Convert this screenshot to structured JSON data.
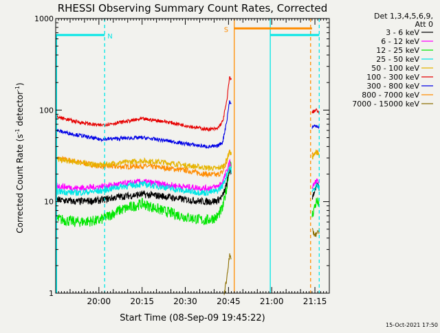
{
  "chart_data": {
    "type": "line",
    "title": "RHESSI Observing Summary Count Rates, Corrected",
    "xlabel": "Start Time (08-Sep-09 19:45:22)",
    "ylabel": "Corrected Count Rate (s⁻¹ detector⁻¹)",
    "ylabel_main": "Corrected Count Rate (s",
    "ylabel_sup1": "-1",
    "ylabel_mid": " detector",
    "ylabel_sup2": "-1",
    "ylabel_end": ")",
    "yscale": "log",
    "ylim": [
      1,
      1000
    ],
    "xlim_minutes_after_start": [
      0,
      95
    ],
    "x_ticks": [
      {
        "label": "20:00",
        "minutes": 15
      },
      {
        "label": "20:15",
        "minutes": 30
      },
      {
        "label": "20:30",
        "minutes": 45
      },
      {
        "label": "20:45",
        "minutes": 60
      },
      {
        "label": "21:00",
        "minutes": 75
      },
      {
        "label": "21:15",
        "minutes": 90
      }
    ],
    "y_ticks": [
      {
        "label": "1",
        "value": 1
      },
      {
        "label": "10",
        "value": 10
      },
      {
        "label": "100",
        "value": 100
      },
      {
        "label": "1000",
        "value": 1000
      }
    ],
    "legend_header": [
      "Det 1,3,4,5,6,9,",
      "Att 0"
    ],
    "legend_position": "right",
    "series": [
      {
        "name": "3 - 6 keV",
        "color": "#000000",
        "values": [
          [
            0,
            10.5
          ],
          [
            7,
            10
          ],
          [
            15,
            10.3
          ],
          [
            22,
            11.3
          ],
          [
            30,
            12
          ],
          [
            37,
            11.5
          ],
          [
            45,
            10.5
          ],
          [
            52,
            10
          ],
          [
            56,
            10.2
          ],
          [
            58,
            11.5
          ],
          [
            59.5,
            16
          ],
          [
            60.3,
            22
          ],
          [
            61,
            20
          ],
          [
            89,
            11
          ],
          [
            90.5,
            15
          ],
          [
            91.5,
            14
          ]
        ]
      },
      {
        "name": "6 - 12 keV",
        "color": "#ff00ff",
        "values": [
          [
            0,
            15
          ],
          [
            7,
            14
          ],
          [
            15,
            14.5
          ],
          [
            22,
            15.5
          ],
          [
            30,
            16.5
          ],
          [
            37,
            15.5
          ],
          [
            45,
            14.5
          ],
          [
            52,
            14
          ],
          [
            56,
            14.5
          ],
          [
            58,
            16.5
          ],
          [
            59.5,
            22
          ],
          [
            60.3,
            27
          ],
          [
            61,
            25
          ],
          [
            89,
            14
          ],
          [
            90.5,
            17
          ],
          [
            91.5,
            16
          ]
        ]
      },
      {
        "name": "12 - 25 keV",
        "color": "#00e600",
        "values": [
          [
            0,
            6.5
          ],
          [
            7,
            6
          ],
          [
            15,
            6.2
          ],
          [
            22,
            8
          ],
          [
            30,
            9.5
          ],
          [
            37,
            8
          ],
          [
            45,
            6.8
          ],
          [
            52,
            6.2
          ],
          [
            56,
            6.8
          ],
          [
            58,
            8.5
          ],
          [
            59.5,
            15
          ],
          [
            60.3,
            26
          ],
          [
            61,
            24
          ],
          [
            89,
            7
          ],
          [
            90.5,
            10
          ],
          [
            91.5,
            9.5
          ]
        ]
      },
      {
        "name": "25 - 50 keV",
        "color": "#00e6e6",
        "values": [
          [
            0,
            13
          ],
          [
            7,
            12.5
          ],
          [
            15,
            13
          ],
          [
            22,
            14.5
          ],
          [
            30,
            15.5
          ],
          [
            37,
            14.5
          ],
          [
            45,
            13
          ],
          [
            52,
            12.5
          ],
          [
            56,
            13
          ],
          [
            58,
            15
          ],
          [
            59.5,
            20
          ],
          [
            60.3,
            24
          ],
          [
            61,
            22
          ],
          [
            89,
            12.5
          ],
          [
            90.5,
            15
          ],
          [
            91.5,
            14.5
          ]
        ]
      },
      {
        "name": "50 - 100 keV",
        "color": "#e6b400",
        "values": [
          [
            0,
            29
          ],
          [
            7,
            27
          ],
          [
            15,
            25
          ],
          [
            22,
            26.5
          ],
          [
            30,
            28
          ],
          [
            37,
            27
          ],
          [
            45,
            25
          ],
          [
            52,
            23.5
          ],
          [
            56,
            23
          ],
          [
            58,
            24
          ],
          [
            59.5,
            29
          ],
          [
            60.3,
            35
          ],
          [
            61,
            33
          ],
          [
            89,
            30
          ],
          [
            90.5,
            35
          ],
          [
            91.5,
            33
          ]
        ]
      },
      {
        "name": "100 - 300 keV",
        "color": "#e60000",
        "values": [
          [
            0,
            85
          ],
          [
            7,
            75
          ],
          [
            15,
            68
          ],
          [
            22,
            73
          ],
          [
            30,
            80
          ],
          [
            37,
            76
          ],
          [
            45,
            68
          ],
          [
            52,
            62
          ],
          [
            56,
            62
          ],
          [
            58,
            75
          ],
          [
            59.5,
            130
          ],
          [
            60.3,
            230
          ],
          [
            61,
            210
          ],
          [
            89,
            95
          ],
          [
            90.5,
            100
          ],
          [
            91.5,
            92
          ]
        ]
      },
      {
        "name": "300 - 800 keV",
        "color": "#0000e6",
        "values": [
          [
            0,
            60
          ],
          [
            7,
            54
          ],
          [
            15,
            48
          ],
          [
            22,
            49
          ],
          [
            30,
            50
          ],
          [
            37,
            47
          ],
          [
            45,
            43
          ],
          [
            52,
            40
          ],
          [
            56,
            40
          ],
          [
            58,
            45
          ],
          [
            59.5,
            80
          ],
          [
            60.3,
            125
          ],
          [
            61,
            115
          ],
          [
            89,
            65
          ],
          [
            90.5,
            68
          ],
          [
            91.5,
            65
          ]
        ]
      },
      {
        "name": "800 - 7000 keV",
        "color": "#ff8c00",
        "values": [
          [
            0,
            30
          ],
          [
            7,
            27.5
          ],
          [
            15,
            24.5
          ],
          [
            22,
            24
          ],
          [
            30,
            24.5
          ],
          [
            37,
            23.5
          ],
          [
            45,
            22
          ],
          [
            52,
            20
          ],
          [
            56,
            19.5
          ],
          [
            58,
            21
          ],
          [
            59.5,
            28
          ],
          [
            60.3,
            36
          ],
          [
            61,
            34
          ],
          [
            89,
            32
          ],
          [
            90.5,
            36
          ],
          [
            91.5,
            34
          ]
        ]
      },
      {
        "name": "7000 - 15000 keV",
        "color": "#8c6e00",
        "values": [
          [
            58.5,
            1
          ],
          [
            59.2,
            1.3
          ],
          [
            59.8,
            1.9
          ],
          [
            60.4,
            2.6
          ],
          [
            61,
            2.3
          ],
          [
            89,
            5
          ],
          [
            90,
            4.3
          ],
          [
            91.5,
            4.8
          ]
        ]
      }
    ],
    "flag_bars": [
      {
        "label": "N",
        "color": "#00e6e6",
        "value": 660,
        "segments": [
          [
            0,
            17
          ],
          [
            74.5,
            91.5
          ]
        ]
      },
      {
        "label": "S",
        "color": "#ff8c00",
        "value": 780,
        "segments": [
          [
            62,
            89
          ]
        ]
      }
    ],
    "vertical_lines": [
      {
        "minutes": 17,
        "color": "#00e6e6",
        "style": "dashed"
      },
      {
        "minutes": 62,
        "color": "#ff8c00",
        "style": "solid"
      },
      {
        "minutes": 74.5,
        "color": "#00e6e6",
        "style": "solid"
      },
      {
        "minutes": 88.5,
        "color": "#ff8c00",
        "style": "dashed"
      },
      {
        "minutes": 91.5,
        "color": "#00e6e6",
        "style": "dashed"
      }
    ],
    "y_axis_segment": {
      "minutes": 0,
      "color": "#00e6e6",
      "ymin": 1,
      "ymax": 660
    },
    "gaps": [
      [
        61,
        89
      ]
    ],
    "footer_timestamp": "15-Oct-2021 17:50"
  }
}
